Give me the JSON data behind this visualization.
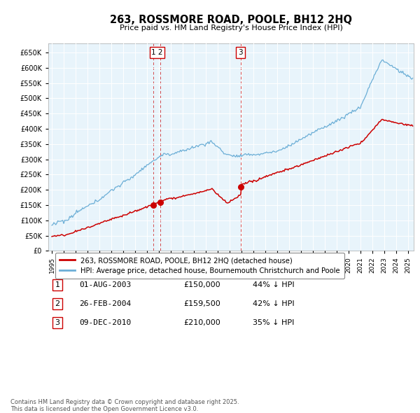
{
  "title": "263, ROSSMORE ROAD, POOLE, BH12 2HQ",
  "subtitle": "Price paid vs. HM Land Registry's House Price Index (HPI)",
  "background_color": "#ffffff",
  "chart_bg_color": "#e8f4fb",
  "grid_color": "#ffffff",
  "hpi_color": "#6baed6",
  "price_color": "#cc0000",
  "transactions": [
    {
      "num": "1",
      "date": "01-AUG-2003",
      "price": "£150,000",
      "pct": "44% ↓ HPI",
      "x_year": 2003.58,
      "y_val": 150000
    },
    {
      "num": "2",
      "date": "26-FEB-2004",
      "price": "£159,500",
      "pct": "42% ↓ HPI",
      "x_year": 2004.15,
      "y_val": 159500
    },
    {
      "num": "3",
      "date": "09-DEC-2010",
      "price": "£210,000",
      "pct": "35% ↓ HPI",
      "x_year": 2010.92,
      "y_val": 210000
    }
  ],
  "legend_label_price": "263, ROSSMORE ROAD, POOLE, BH12 2HQ (detached house)",
  "legend_label_hpi": "HPI: Average price, detached house, Bournemouth Christchurch and Poole",
  "footer": "Contains HM Land Registry data © Crown copyright and database right 2025.\nThis data is licensed under the Open Government Licence v3.0.",
  "ylim": [
    0,
    680000
  ],
  "yticks": [
    0,
    50000,
    100000,
    150000,
    200000,
    250000,
    300000,
    350000,
    400000,
    450000,
    500000,
    550000,
    600000,
    650000
  ],
  "xlim_start": 1994.7,
  "xlim_end": 2025.5
}
